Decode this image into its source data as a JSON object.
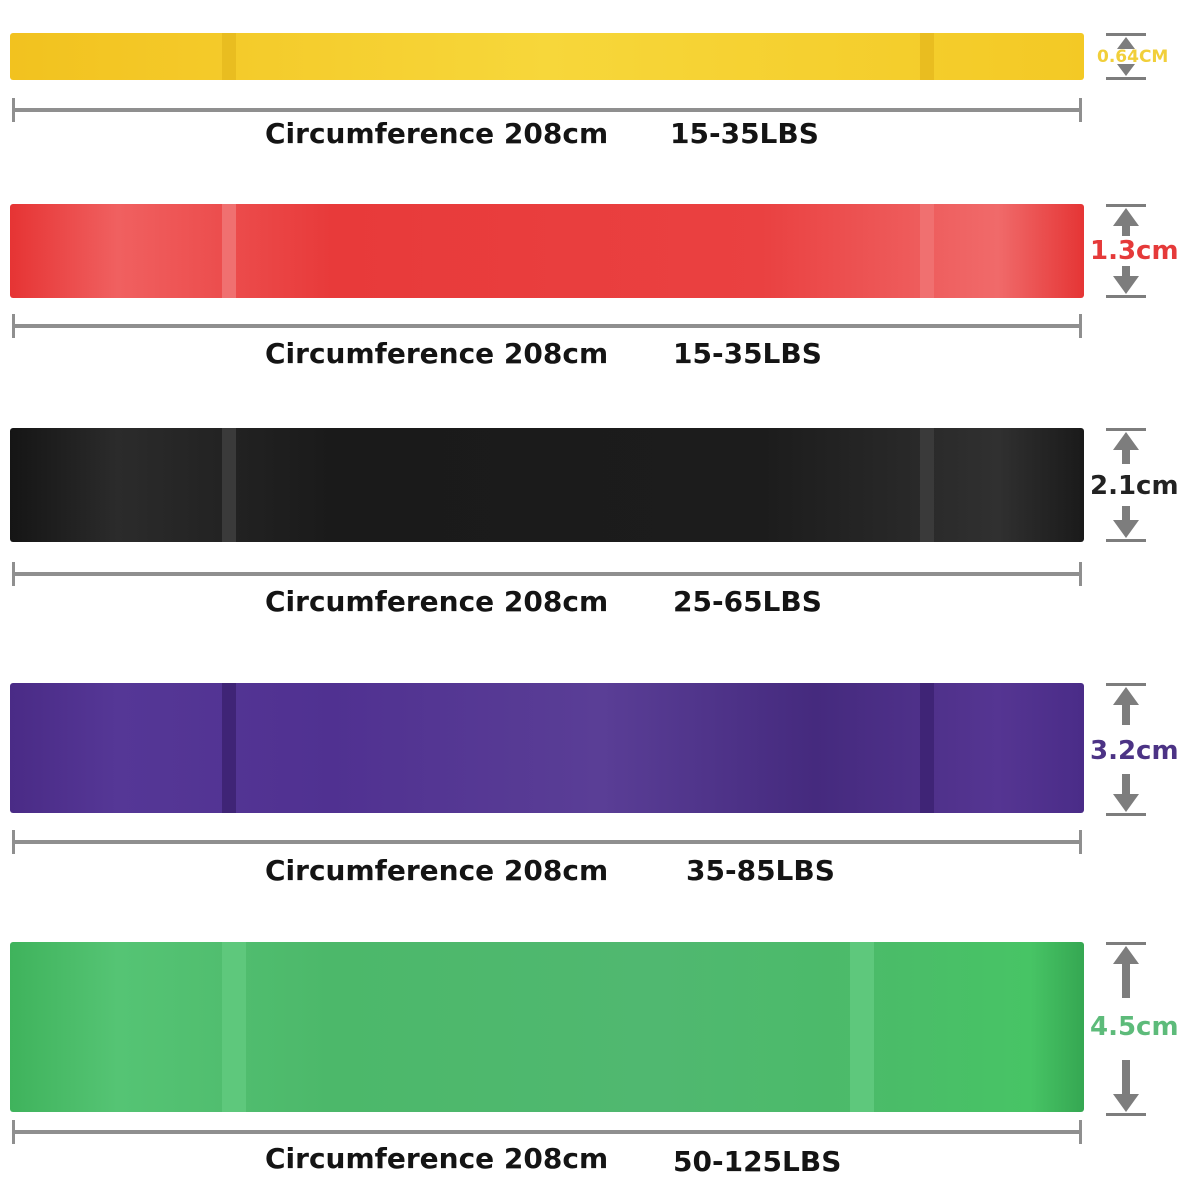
{
  "bands": [
    {
      "color": "#f3cc22",
      "width_label": "0.64CM",
      "width_color": "#f1cf3a",
      "circumference": "Circumference 208cm",
      "resistance": "15-35LBS"
    },
    {
      "color": "#e83a3a",
      "width_label": "1.3cm",
      "width_color": "#e53a3a",
      "circumference": "Circumference 208cm",
      "resistance": "15-35LBS"
    },
    {
      "color": "#1e1e1e",
      "width_label": "2.1cm",
      "width_color": "#222222",
      "circumference": "Circumference 208cm",
      "resistance": "25-65LBS"
    },
    {
      "color": "#4f3289",
      "width_label": "3.2cm",
      "width_color": "#4c3385",
      "circumference": "Circumference 208cm",
      "resistance": "35-85LBS"
    },
    {
      "color": "#4fba6c",
      "width_label": "4.5cm",
      "width_color": "#5dbb7a",
      "circumference": "Circumference 208cm",
      "resistance": "50-125LBS"
    }
  ]
}
